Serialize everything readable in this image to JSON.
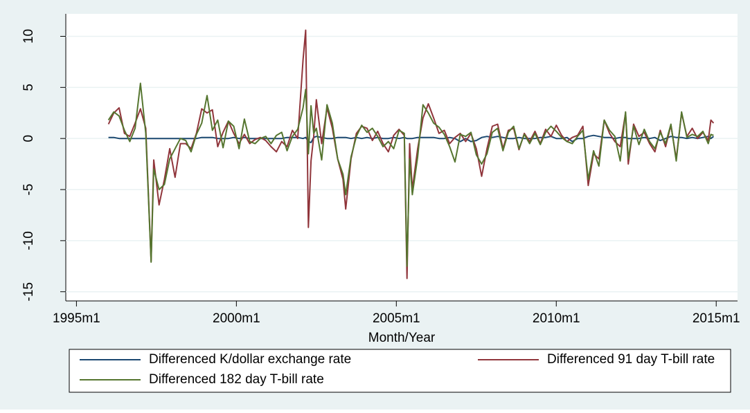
{
  "chart_data": {
    "type": "line",
    "x_label": "Month/Year",
    "x": [
      432,
      434,
      436,
      438,
      440,
      442,
      444,
      446,
      448,
      449,
      451,
      453,
      455,
      457,
      459,
      461,
      463,
      465,
      467,
      469,
      471,
      473,
      475,
      477,
      479,
      481,
      483,
      485,
      487,
      489,
      491,
      493,
      495,
      497,
      499,
      501,
      503,
      505,
      506,
      507,
      508,
      509,
      510,
      512,
      514,
      516,
      518,
      520,
      521,
      523,
      525,
      527,
      529,
      531,
      533,
      535,
      537,
      539,
      541,
      543,
      544,
      545,
      546,
      548,
      550,
      552,
      554,
      556,
      558,
      560,
      562,
      564,
      566,
      568,
      570,
      572,
      574,
      576,
      578,
      580,
      582,
      584,
      586,
      588,
      590,
      592,
      594,
      596,
      598,
      600,
      602,
      604,
      606,
      608,
      610,
      612,
      614,
      616,
      618,
      620,
      622,
      624,
      626,
      627,
      629,
      631,
      633,
      635,
      637,
      639,
      641,
      643,
      645,
      647,
      649,
      651,
      653,
      655,
      657,
      658,
      659
    ],
    "series": [
      {
        "name": "Differenced K/dollar exchange rate",
        "color": "#1a476f",
        "values": [
          0.1,
          0.1,
          0,
          0,
          0,
          0,
          0,
          0,
          0,
          0,
          0,
          0,
          0,
          0,
          0,
          0,
          0,
          0,
          0.1,
          0.1,
          0.1,
          0,
          0,
          0,
          0.1,
          0,
          0.1,
          0,
          0,
          0,
          0,
          0,
          0,
          0,
          0.1,
          0.1,
          0.1,
          0,
          0.1,
          -0.3,
          -0.4,
          0.1,
          0.2,
          0.1,
          0,
          0,
          0.1,
          0.1,
          0.1,
          0,
          0.1,
          0,
          0.1,
          0,
          0.1,
          0,
          0,
          0.1,
          0,
          0.1,
          0,
          0,
          0,
          0.1,
          0.1,
          0.1,
          0.1,
          0,
          0,
          0.1,
          0,
          -0.3,
          0,
          -0.3,
          -0.2,
          0.1,
          0.2,
          0.1,
          0.2,
          0.1,
          0,
          0,
          0.1,
          0,
          0,
          0,
          0.1,
          0.1,
          0.2,
          0,
          0,
          0.1,
          -0.3,
          0,
          0,
          0.2,
          0.3,
          0.2,
          0.1,
          0.1,
          0,
          0.1,
          0.1,
          0,
          0,
          0,
          0.1,
          0,
          0.1,
          -0.2,
          0,
          0.2,
          0.1,
          0.1,
          0,
          0.1,
          0,
          0.1,
          0.2,
          0,
          0.2
        ]
      },
      {
        "name": "Differenced 91 day T-bill rate",
        "color": "#90353b",
        "values": [
          1.4,
          2.5,
          3.0,
          0.5,
          0.2,
          1.5,
          2.9,
          1.0,
          -12.0,
          -2.1,
          -6.5,
          -4.0,
          -1.0,
          -3.8,
          -0.5,
          -0.5,
          -1.0,
          0.5,
          2.9,
          2.5,
          2.8,
          -0.8,
          0.6,
          1.7,
          0.5,
          -0.5,
          0.4,
          -0.5,
          -0.1,
          0.1,
          -0.2,
          -0.8,
          -1.3,
          -0.3,
          -0.8,
          0.8,
          0,
          7.7,
          10.6,
          -8.7,
          -2.2,
          0.2,
          3.8,
          -0.5,
          3.0,
          1.0,
          -2.0,
          -4.0,
          -6.9,
          -2.0,
          0.5,
          1.2,
          1.0,
          -0.2,
          0.7,
          -0.5,
          -1.3,
          0.3,
          0.9,
          0.3,
          -13.7,
          -0.5,
          -5.0,
          -1.0,
          2.0,
          3.4,
          2.0,
          0.5,
          0.8,
          -0.5,
          0.1,
          0.5,
          -0.3,
          0.5,
          -1.0,
          -3.7,
          -1.0,
          1.2,
          1.4,
          -1.0,
          0.8,
          1.0,
          -1.1,
          0.5,
          -0.3,
          0.7,
          -0.5,
          0.9,
          0.2,
          1.3,
          0.3,
          -0.3,
          0.1,
          0.3,
          1.2,
          -4.6,
          -1.5,
          -2.0,
          1.8,
          0.5,
          -0.3,
          -0.8,
          2.5,
          -2.5,
          1.4,
          0.2,
          0.6,
          -0.5,
          -1.3,
          0.8,
          -0.8,
          1.3,
          -2.0,
          2.5,
          0.2,
          1.0,
          0,
          0.6,
          -0.2,
          1.8,
          1.5
        ]
      },
      {
        "name": "Differenced 182 day T-bill rate",
        "color": "#55752f",
        "values": [
          1.8,
          2.6,
          2.2,
          0.8,
          -0.3,
          1.0,
          5.4,
          0.5,
          -12.1,
          -3.0,
          -5.0,
          -4.5,
          -2.0,
          -1.0,
          0,
          -0.2,
          -1.3,
          0.4,
          1.5,
          4.2,
          0.8,
          1.8,
          -0.9,
          1.7,
          1.2,
          -1.0,
          1.9,
          -0.3,
          -0.5,
          0,
          0.2,
          -0.5,
          0.3,
          0.6,
          -1.2,
          0.2,
          0.9,
          3.0,
          4.8,
          -1.5,
          3.2,
          0.5,
          1.0,
          -2.1,
          3.3,
          1.5,
          -2.0,
          -3.5,
          -5.5,
          -1.8,
          0.2,
          1.3,
          0.6,
          1.0,
          0.2,
          -0.8,
          -0.3,
          -1.0,
          0.8,
          0.5,
          -12.5,
          -2.0,
          -5.5,
          -1.8,
          3.3,
          2.5,
          1.5,
          1.1,
          0.4,
          -0.8,
          -2.3,
          0.4,
          0.2,
          0.6,
          -1.6,
          -2.5,
          -1.5,
          0.6,
          1.0,
          -1.2,
          0.6,
          1.2,
          -1.0,
          0.4,
          -0.5,
          0.5,
          -0.6,
          0.6,
          1.2,
          0.7,
          0.1,
          -0.3,
          -0.5,
          0.2,
          0.8,
          -4.0,
          -1.2,
          -2.7,
          1.8,
          0.8,
          0.2,
          -2.2,
          2.6,
          -2.0,
          1.2,
          -0.6,
          0.9,
          -0.3,
          -1.0,
          0.6,
          -0.5,
          1.4,
          -2.2,
          2.6,
          0.1,
          0.4,
          0.2,
          0.7,
          -0.5,
          0.4,
          0.3
        ]
      }
    ],
    "xlim": [
      416,
      668
    ],
    "xticks": [
      {
        "value": 420,
        "label": "1995m1"
      },
      {
        "value": 480,
        "label": "2000m1"
      },
      {
        "value": 540,
        "label": "2005m1"
      },
      {
        "value": 600,
        "label": "2010m1"
      },
      {
        "value": 660,
        "label": "2015m1"
      }
    ],
    "ylim": [
      -15.9,
      12.2
    ],
    "yticks": [
      -15,
      -10,
      -5,
      0,
      5,
      10
    ],
    "grid": true
  }
}
